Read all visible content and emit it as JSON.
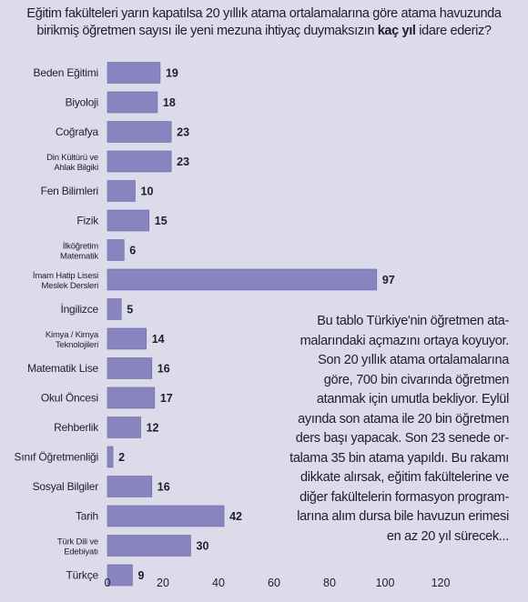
{
  "title": {
    "line1": "Eğitim fakülteleri yarın kapatılsa 20 yıllık atama ortalamalarına göre atama havuzunda",
    "line2_start": "birikmiş öğretmen sayısı ile yeni mezuna ihtiyaç duymaksızın ",
    "line2_bold": "kaç yıl",
    "line2_end": " idare ederiz?"
  },
  "chart_data": {
    "type": "bar",
    "orientation": "horizontal",
    "title": "Eğitim fakülteleri yarın kapatılsa 20 yıllık atama ortalamalarına göre atama havuzunda birikmiş öğretmen sayısı ile yeni mezuna ihtiyaç duymaksızın kaç yıl idare ederiz?",
    "xlabel": "",
    "ylabel": "",
    "xlim": [
      0,
      120
    ],
    "x_ticks": [
      0,
      20,
      40,
      60,
      80,
      100,
      120
    ],
    "grid": false,
    "bar_color": "#8983bf",
    "categories": [
      [
        "Beden Eğitimi"
      ],
      [
        "Biyoloji"
      ],
      [
        "Coğrafya"
      ],
      [
        "Din Kültürü ve",
        "Ahlak Bilgiki"
      ],
      [
        "Fen Bilimleri"
      ],
      [
        "Fizik"
      ],
      [
        "İlköğretim",
        "Matematik"
      ],
      [
        "İmam Hatip Lisesi",
        "Meslek Dersleri"
      ],
      [
        "İngilizce"
      ],
      [
        "Kimya / Kimya",
        "Teknolojileri"
      ],
      [
        "Matematik Lise"
      ],
      [
        "Okul Öncesi"
      ],
      [
        "Rehberlik"
      ],
      [
        "Sınıf Öğretmenliği"
      ],
      [
        "Sosyal Bilgiler"
      ],
      [
        "Tarih"
      ],
      [
        "Türk Dili ve",
        "Edebiyatı"
      ],
      [
        "Türkçe"
      ]
    ],
    "values": [
      19,
      18,
      23,
      23,
      10,
      15,
      6,
      97,
      5,
      14,
      16,
      17,
      12,
      2,
      16,
      42,
      30,
      9
    ]
  },
  "note": {
    "lines": [
      "Bu tablo Türkiye'nin öğretmen ata-",
      "malarındaki açmazını ortaya koyuyor.",
      "Son 20 yıllık atama ortalamalarına",
      "göre, 700 bin civarında öğretmen",
      "atanmak için umutla bekliyor. Eylül",
      "ayında son atama ile 20 bin öğretmen",
      "ders başı yapacak. Son 23 senede or-",
      "talama 35 bin atama yapıldı. Bu rakamı",
      "dikkate alırsak, eğitim fakültelerine ve",
      "diğer fakültelerin formasyon program-",
      "larına alım dursa bile havuzun erimesi",
      "en az 20 yıl  sürecek..."
    ]
  }
}
